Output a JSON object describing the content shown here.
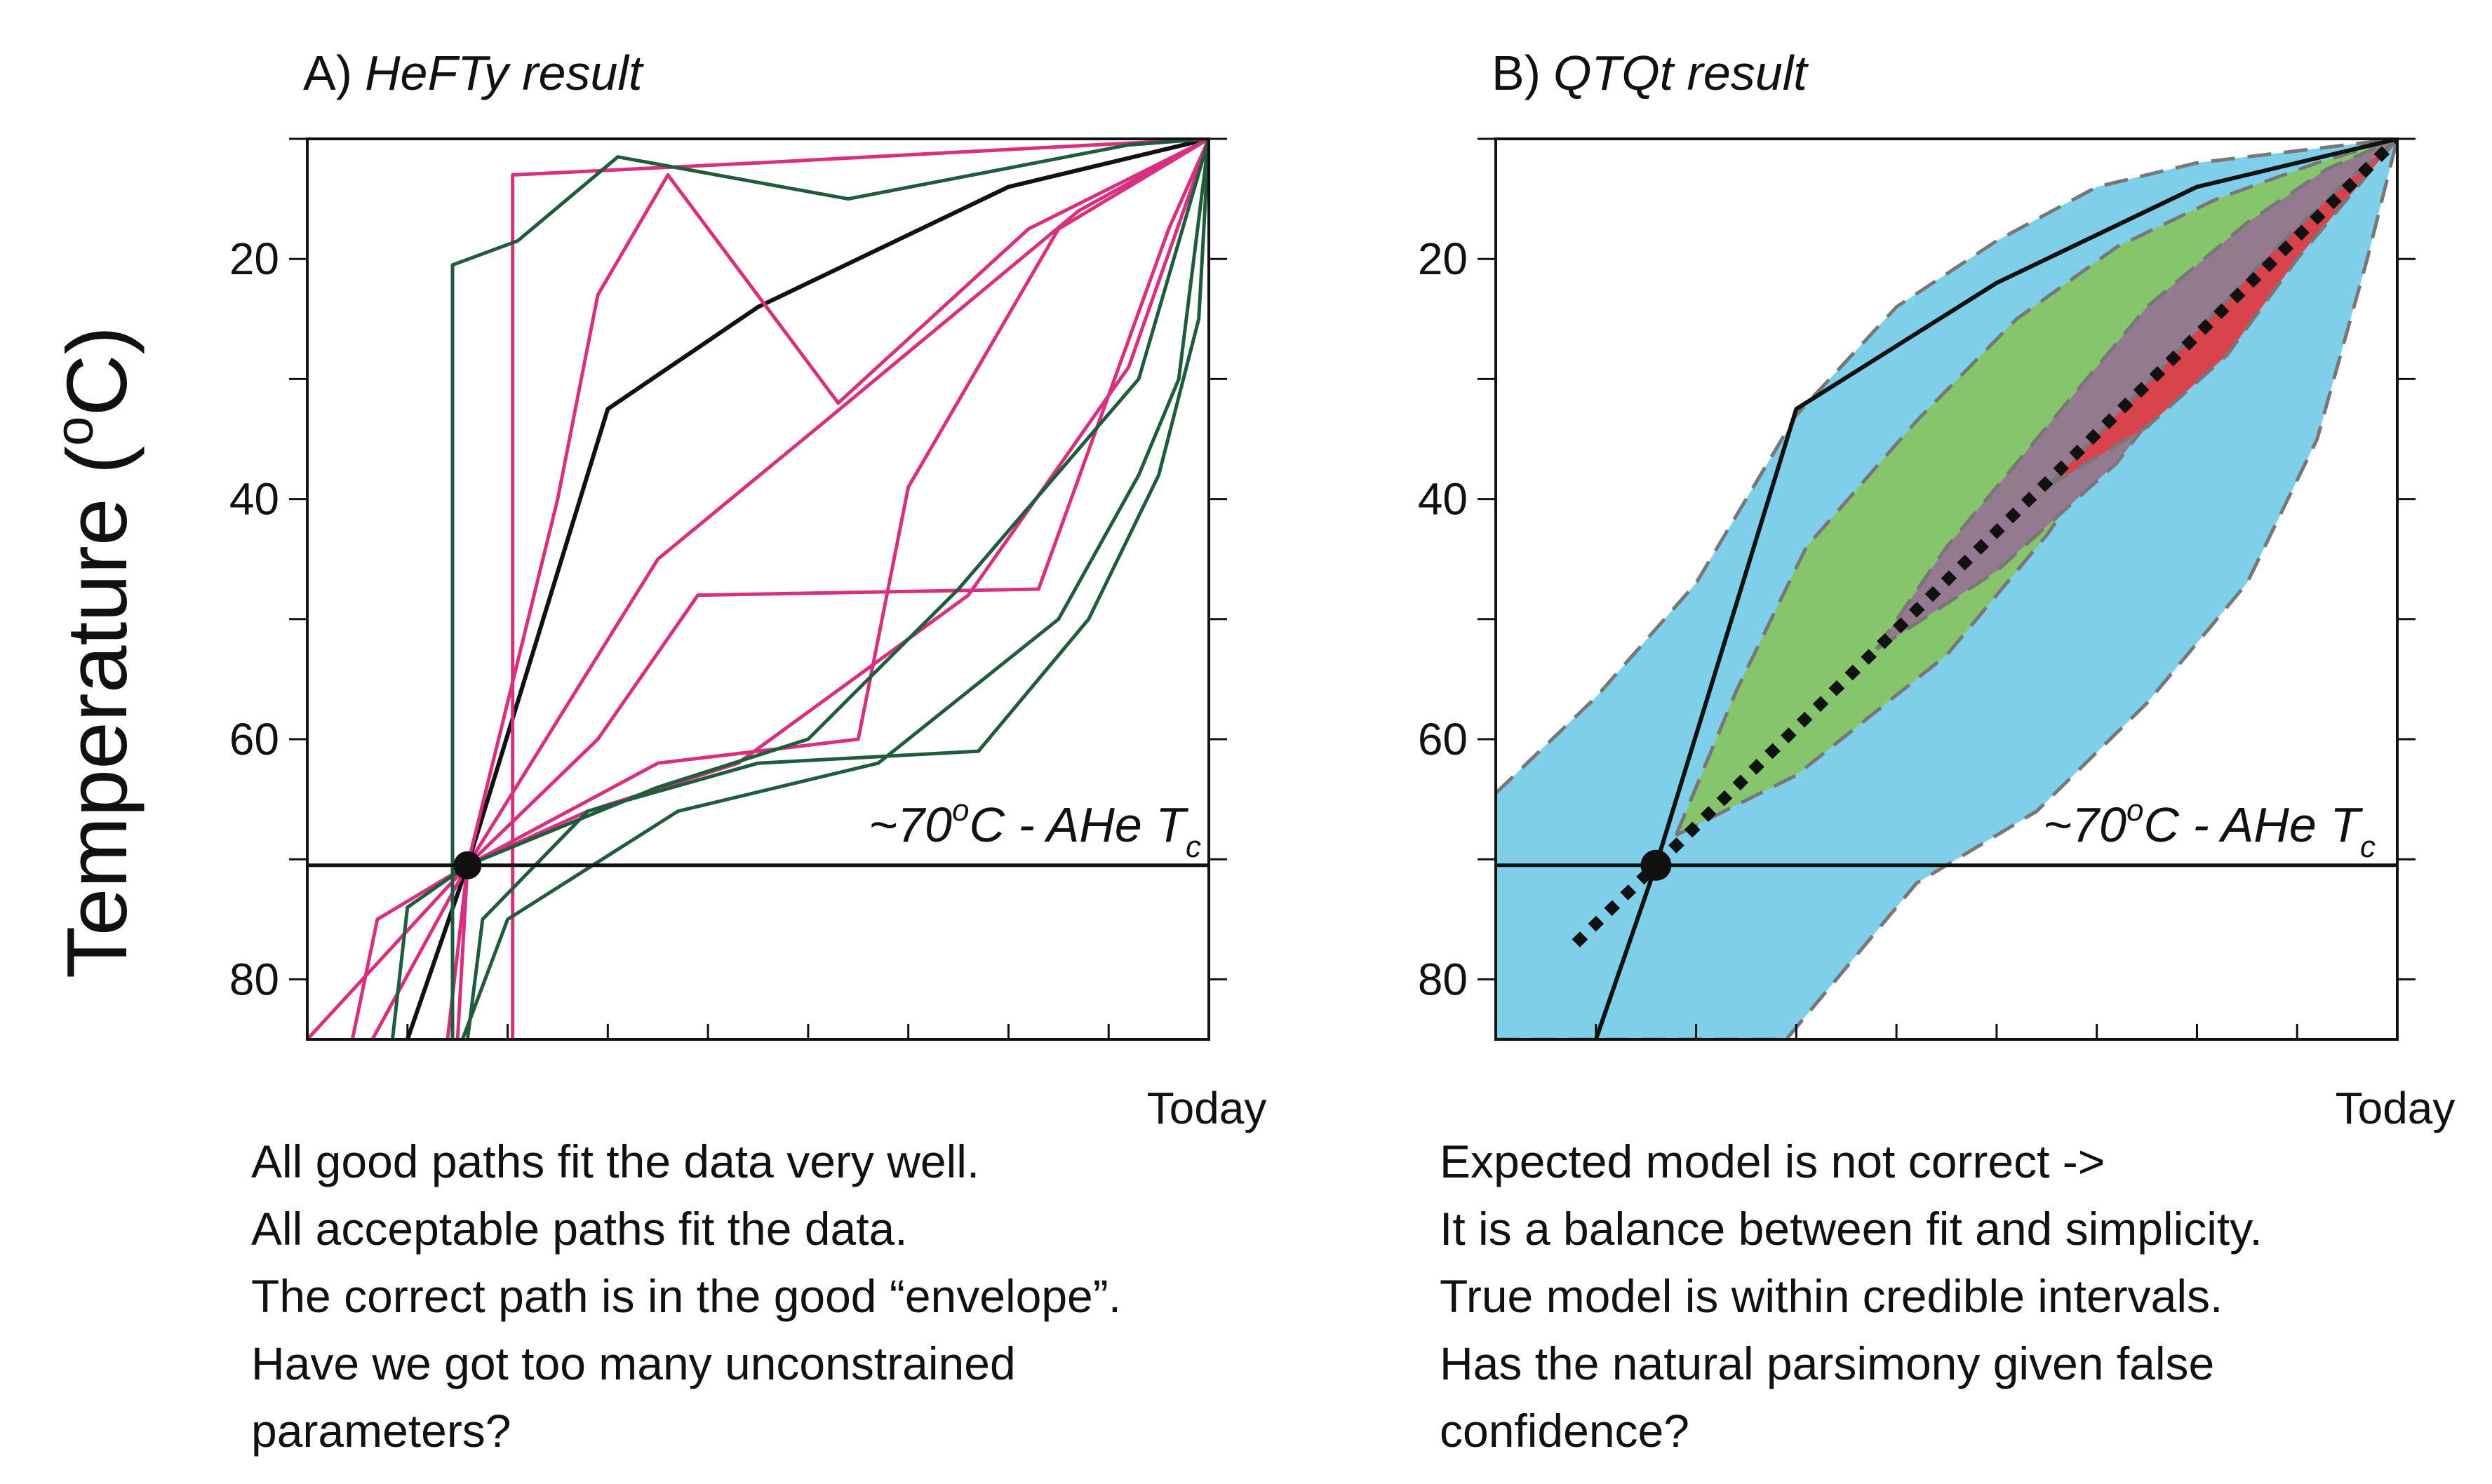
{
  "chart_data": [
    {
      "type": "line",
      "title_letter": "A)",
      "title_text": "HeFTy result",
      "ylabel": "Temperature (",
      "ylabel_sup": "o",
      "ylabel_unit": "C)",
      "xlabel_end": "Today",
      "y_axis": "inverted",
      "ylim": [
        10,
        85
      ],
      "xlim": [
        0,
        9
      ],
      "yticks": [
        20,
        40,
        60,
        80
      ],
      "annotation": {
        "prefix": "~70",
        "sup": "o",
        "mid": "C - AHe T",
        "sub": "c"
      },
      "closure_temperature": 70.5,
      "constraint_point": {
        "x": 1.6,
        "y": 70.5
      },
      "series": [
        {
          "name": "best path",
          "color": "#111111",
          "points": [
            [
              1.0,
              85
            ],
            [
              1.6,
              70.5
            ],
            [
              3.0,
              32.5
            ],
            [
              4.5,
              24
            ],
            [
              7.0,
              14
            ],
            [
              9.0,
              10
            ]
          ]
        },
        {
          "name": "good path 1",
          "color": "#d6307f",
          "points": [
            [
              2.05,
              85
            ],
            [
              2.05,
              70
            ],
            [
              2.05,
              40
            ],
            [
              2.05,
              13
            ],
            [
              4.5,
              12
            ],
            [
              9.0,
              10
            ]
          ]
        },
        {
          "name": "good path 2",
          "color": "#d6307f",
          "points": [
            [
              1.4,
              85
            ],
            [
              1.6,
              70.5
            ],
            [
              2.5,
              40
            ],
            [
              2.9,
              23
            ],
            [
              3.6,
              13
            ],
            [
              5.3,
              32
            ],
            [
              7.2,
              17.5
            ],
            [
              9.0,
              10
            ]
          ]
        },
        {
          "name": "good path 3",
          "color": "#d6307f",
          "points": [
            [
              0.45,
              85
            ],
            [
              0.7,
              75
            ],
            [
              1.6,
              70.5
            ],
            [
              2.9,
              60
            ],
            [
              3.9,
              48
            ],
            [
              7.3,
              47.5
            ],
            [
              8.6,
              17.5
            ],
            [
              9.0,
              10
            ]
          ]
        },
        {
          "name": "good path 4",
          "color": "#d6307f",
          "points": [
            [
              0.0,
              85
            ],
            [
              1.6,
              70.5
            ],
            [
              3.5,
              62
            ],
            [
              5.5,
              60
            ],
            [
              6.0,
              39
            ],
            [
              7.5,
              17.5
            ],
            [
              9.0,
              10
            ]
          ]
        },
        {
          "name": "good path 5",
          "color": "#d6307f",
          "points": [
            [
              1.5,
              85
            ],
            [
              1.6,
              70.5
            ],
            [
              3.5,
              45
            ],
            [
              5.1,
              34
            ],
            [
              7.7,
              16
            ],
            [
              9.0,
              10
            ]
          ]
        },
        {
          "name": "good path 6",
          "color": "#d6307f",
          "points": [
            [
              0.65,
              85
            ],
            [
              1.6,
              70.5
            ],
            [
              2.8,
              66
            ],
            [
              4.3,
              62
            ],
            [
              6.6,
              48
            ],
            [
              8.2,
              29
            ],
            [
              9.0,
              10
            ]
          ]
        },
        {
          "name": "acceptable path 1",
          "color": "#1f5c3c",
          "points": [
            [
              1.45,
              85
            ],
            [
              1.45,
              70
            ],
            [
              1.45,
              44
            ],
            [
              1.45,
              20.5
            ],
            [
              2.1,
              18.5
            ],
            [
              3.1,
              11.5
            ],
            [
              5.4,
              15
            ],
            [
              8.2,
              10.5
            ],
            [
              9.0,
              10
            ]
          ]
        },
        {
          "name": "acceptable path 2",
          "color": "#1f5c3c",
          "points": [
            [
              1.6,
              85
            ],
            [
              1.75,
              75
            ],
            [
              2.8,
              66
            ],
            [
              4.5,
              62
            ],
            [
              6.7,
              61
            ],
            [
              7.8,
              50
            ],
            [
              8.5,
              38
            ],
            [
              8.9,
              25
            ],
            [
              9.0,
              10
            ]
          ]
        },
        {
          "name": "acceptable path 3",
          "color": "#1f5c3c",
          "points": [
            [
              0.85,
              85
            ],
            [
              1.0,
              74
            ],
            [
              1.6,
              70.5
            ],
            [
              3.5,
              64
            ],
            [
              5.0,
              60
            ],
            [
              6.5,
              47.5
            ],
            [
              8.3,
              30
            ],
            [
              9.0,
              10
            ]
          ]
        },
        {
          "name": "acceptable path 4",
          "color": "#1f5c3c",
          "points": [
            [
              1.55,
              85
            ],
            [
              2.0,
              75
            ],
            [
              3.7,
              66
            ],
            [
              5.7,
              62
            ],
            [
              7.5,
              50
            ],
            [
              8.3,
              38
            ],
            [
              8.7,
              30
            ],
            [
              9.0,
              10
            ]
          ]
        }
      ],
      "notes": [
        "All good paths fit the data very well.",
        "All acceptable paths fit the data.",
        "The correct path is in the good “envelope”.",
        "Have we got too many unconstrained",
        "parameters?"
      ]
    },
    {
      "type": "area",
      "title_letter": "B)",
      "title_text": "QTQt result",
      "xlabel_end": "Today",
      "y_axis": "inverted",
      "ylim": [
        10,
        85
      ],
      "xlim": [
        0,
        9
      ],
      "yticks": [
        20,
        40,
        60,
        80
      ],
      "annotation": {
        "prefix": "~70",
        "sup": "o",
        "mid": "C - AHe T",
        "sub": "c"
      },
      "closure_temperature": 70.5,
      "constraint_point": {
        "x": 1.6,
        "y": 70.5
      },
      "bands": [
        {
          "name": "outer credible interval",
          "color": "#7fcfea",
          "upper": [
            [
              0,
              64.5
            ],
            [
              1.0,
              56.5
            ],
            [
              2.0,
              47
            ],
            [
              3.0,
              33
            ],
            [
              4.0,
              24
            ],
            [
              5.0,
              18.5
            ],
            [
              6.0,
              14
            ],
            [
              7.0,
              12
            ],
            [
              8.0,
              11
            ],
            [
              9.0,
              10
            ]
          ],
          "lower": [
            [
              0,
              85
            ],
            [
              2.9,
              85
            ],
            [
              4.2,
              72
            ],
            [
              5.4,
              66
            ],
            [
              6.5,
              57
            ],
            [
              7.5,
              47
            ],
            [
              8.2,
              35
            ],
            [
              8.7,
              20
            ],
            [
              9.0,
              10
            ]
          ]
        },
        {
          "name": "middle credible interval",
          "color": "#86c56c",
          "upper": [
            [
              1.8,
              68
            ],
            [
              2.4,
              56
            ],
            [
              3.1,
              44
            ],
            [
              4.2,
              33.5
            ],
            [
              5.2,
              25
            ],
            [
              6.2,
              19
            ],
            [
              7.2,
              15
            ],
            [
              8.2,
              12
            ],
            [
              9.0,
              10
            ]
          ],
          "lower": [
            [
              1.8,
              68
            ],
            [
              3.0,
              63
            ],
            [
              4.5,
              53
            ],
            [
              5.5,
              43
            ],
            [
              6.5,
              31
            ],
            [
              7.5,
              22
            ],
            [
              8.3,
              14
            ],
            [
              9.0,
              10
            ]
          ]
        },
        {
          "name": "inner credible interval",
          "color": "#947a8e",
          "upper": [
            [
              3.8,
              52.5
            ],
            [
              4.5,
              44
            ],
            [
              5.5,
              34
            ],
            [
              6.5,
              24
            ],
            [
              7.5,
              17
            ],
            [
              8.3,
              12.5
            ],
            [
              9.0,
              10
            ]
          ],
          "lower": [
            [
              3.8,
              52.5
            ],
            [
              5.0,
              46
            ],
            [
              6.2,
              37
            ],
            [
              7.2,
              26
            ],
            [
              8.1,
              17
            ],
            [
              9.0,
              10
            ]
          ]
        },
        {
          "name": "best fit interval",
          "color": "#d9434d",
          "upper": [
            [
              5.5,
              39
            ],
            [
              6.2,
              33
            ],
            [
              7.0,
              26
            ],
            [
              7.8,
              19
            ],
            [
              8.5,
              13.5
            ],
            [
              9.0,
              10
            ]
          ],
          "lower": [
            [
              5.5,
              39
            ],
            [
              6.5,
              34
            ],
            [
              7.3,
              28
            ],
            [
              8.0,
              20
            ],
            [
              8.6,
              14
            ],
            [
              9.0,
              10
            ]
          ]
        }
      ],
      "expected_model": {
        "name": "expected model",
        "style": "dotted",
        "color": "#111111",
        "points": [
          [
            0.8,
            77
          ],
          [
            1.6,
            70.5
          ],
          [
            9.0,
            10
          ]
        ]
      },
      "true_model": {
        "name": "true model",
        "style": "solid",
        "color": "#111111",
        "points": [
          [
            1.0,
            85
          ],
          [
            1.6,
            70.5
          ],
          [
            3.0,
            32.5
          ],
          [
            5.0,
            22
          ],
          [
            7.0,
            14
          ],
          [
            9.0,
            10
          ]
        ]
      },
      "notes": [
        "Expected model is not correct ->",
        "It is a balance between fit and simplicity.",
        "True model is within credible intervals.",
        "Has the natural parsimony given false",
        "confidence?"
      ]
    }
  ]
}
